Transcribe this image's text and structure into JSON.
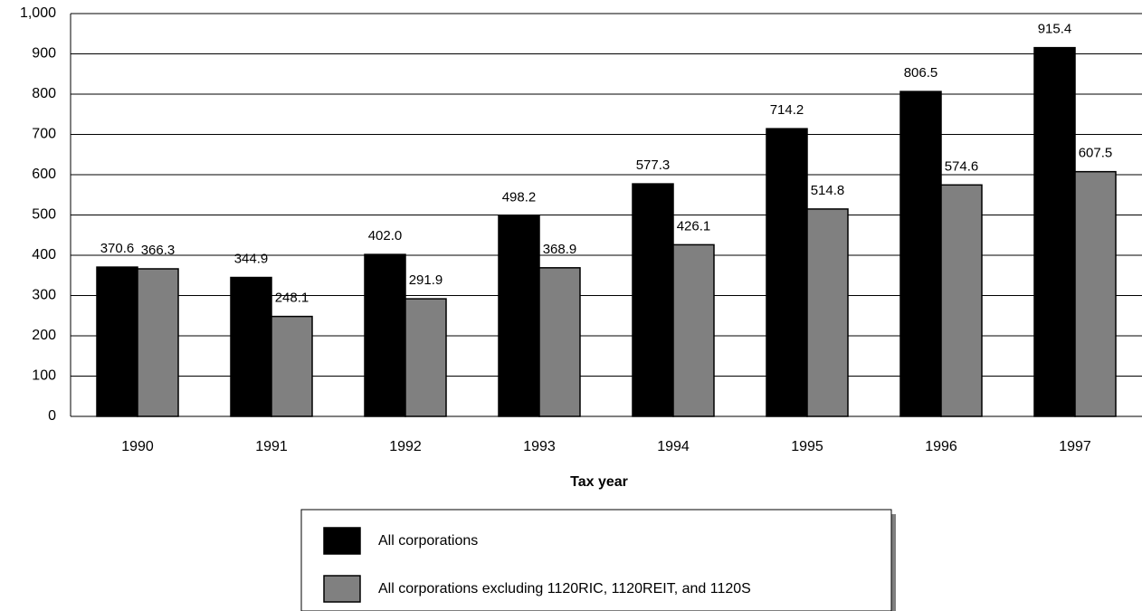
{
  "chart_data": {
    "type": "bar",
    "x_label": "Tax year",
    "categories": [
      "1990",
      "1991",
      "1992",
      "1993",
      "1994",
      "1995",
      "1996",
      "1997"
    ],
    "series": [
      {
        "name": "All corporations",
        "color": "#000000",
        "values": [
          370.6,
          344.9,
          402.0,
          498.2,
          577.3,
          714.2,
          806.5,
          915.4
        ],
        "value_labels": [
          "370.6",
          "344.9",
          "402.0",
          "498.2",
          "577.3",
          "714.2",
          "806.5",
          "915.4"
        ]
      },
      {
        "name": "All corporations excluding 1120RIC, 1120REIT, and 1120S",
        "color": "#808080",
        "values": [
          366.3,
          248.1,
          291.9,
          368.9,
          426.1,
          514.8,
          574.6,
          607.5
        ],
        "value_labels": [
          "366.3",
          "248.1",
          "291.9",
          "368.9",
          "426.1",
          "514.8",
          "574.6",
          "607.5"
        ]
      }
    ],
    "ylim": [
      0,
      1000
    ],
    "yticks": [
      0,
      100,
      200,
      300,
      400,
      500,
      600,
      700,
      800,
      900,
      {
        "value": 1000,
        "label": "1,000"
      }
    ],
    "grid": true,
    "legend": "bottom"
  }
}
